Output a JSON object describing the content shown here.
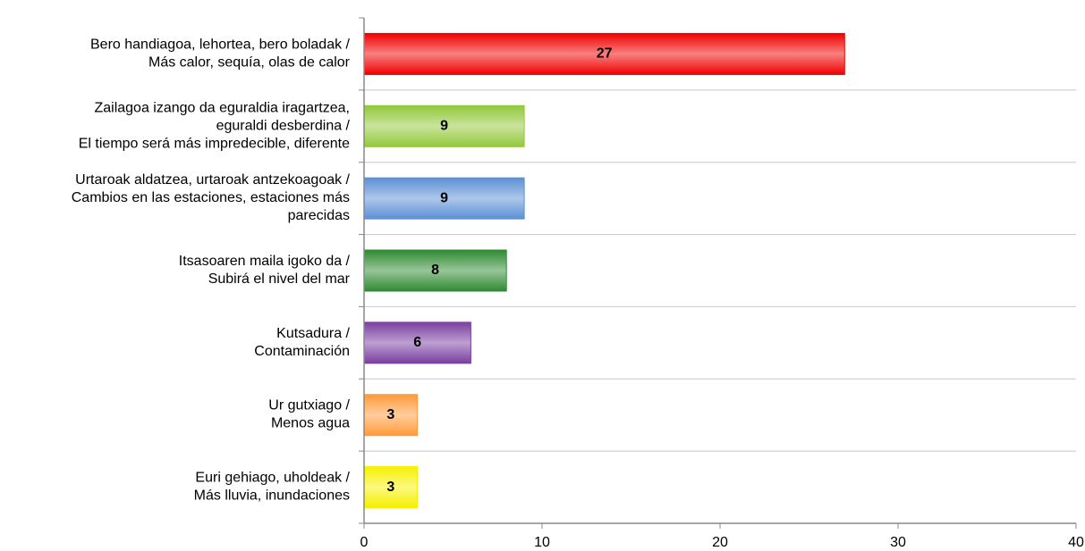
{
  "chart_data": {
    "type": "barh",
    "categories": [
      [
        "Bero handiagoa, lehortea, bero boladak /",
        "Más calor, sequía, olas de calor"
      ],
      [
        "Zailagoa izango da eguraldia iragartzea,",
        "eguraldi desberdina /",
        "El tiempo será más impredecible, diferente"
      ],
      [
        "Urtaroak aldatzea, urtaroak antzekoagoak /",
        "Cambios en las estaciones, estaciones más",
        "parecidas"
      ],
      [
        "Itsasoaren maila igoko da /",
        "Subirá el nivel del mar"
      ],
      [
        "Kutsadura /",
        "Contaminación"
      ],
      [
        "Ur gutxiago /",
        "Menos agua"
      ],
      [
        "Euri gehiago, uholdeak /",
        "Más lluvia, inundaciones"
      ]
    ],
    "values": [
      27,
      9,
      9,
      8,
      6,
      3,
      3
    ],
    "colors": [
      "#f00000",
      "#92c83a",
      "#5b8fd4",
      "#2f8a32",
      "#7a3fa0",
      "#ff9a3a",
      "#f6f000"
    ],
    "xlim": [
      0,
      40
    ],
    "xticks": [
      0,
      10,
      20,
      30,
      40
    ],
    "grid": true
  }
}
